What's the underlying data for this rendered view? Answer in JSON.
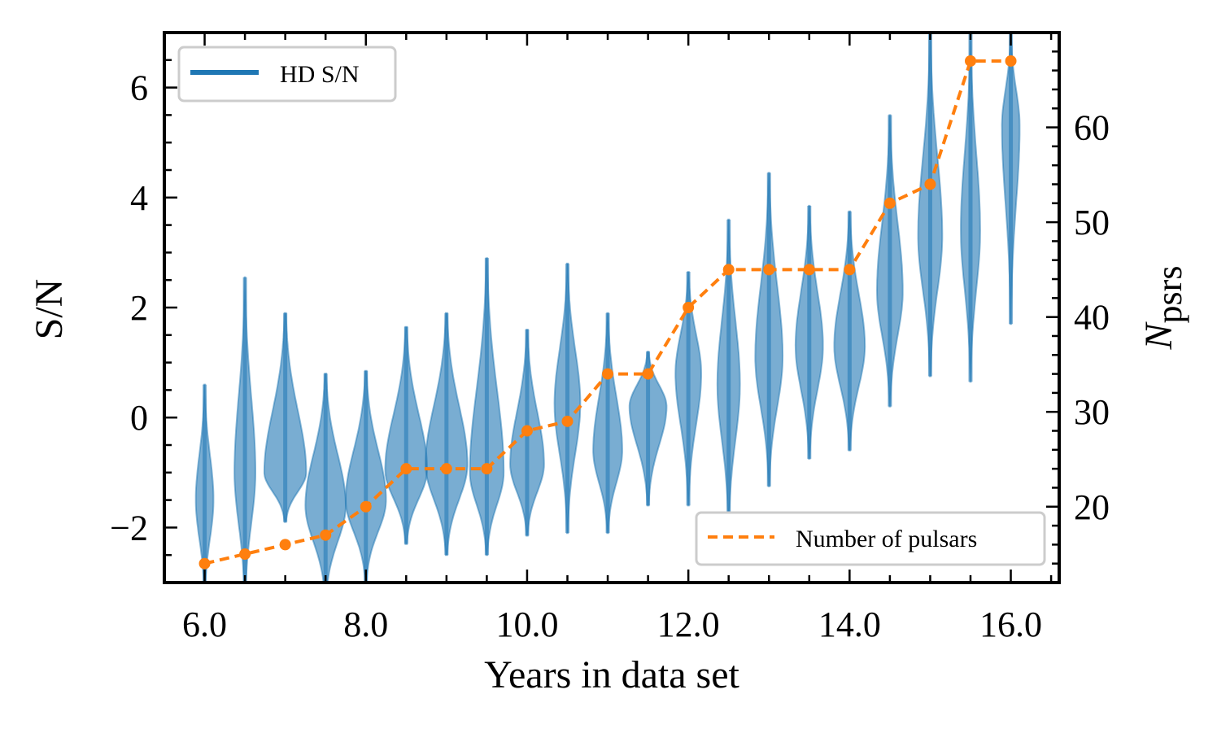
{
  "chart_data": {
    "type": "violin",
    "xlabel": "Years in data set",
    "ylabel_left": "S/N",
    "ylabel_right_main": "N",
    "ylabel_right_sub": "psrs",
    "xlim": [
      5.5,
      16.6
    ],
    "ylim_left": [
      -3.0,
      7.0
    ],
    "ylim_right": [
      12.0,
      70.0
    ],
    "x_ticks": [
      "6.0",
      "8.0",
      "10.0",
      "12.0",
      "14.0",
      "16.0"
    ],
    "y_left_ticks": [
      "−2",
      "0",
      "2",
      "4",
      "6"
    ],
    "y_right_ticks": [
      "20",
      "30",
      "40",
      "50",
      "60"
    ],
    "grid": false,
    "colors": {
      "violin": "#1f77b4",
      "pulsars": "#ff7f0e"
    },
    "legend_sn": {
      "label": "HD S/N",
      "position": "upper-left"
    },
    "legend_pulsars": {
      "label": "Number of pulsars",
      "position": "lower-right"
    },
    "violins": [
      {
        "x": 6.0,
        "min": -3.3,
        "max": 0.6,
        "median": -2.2,
        "peak": -1.5,
        "width": 0.22
      },
      {
        "x": 6.5,
        "min": -3.4,
        "max": 2.55,
        "median": -1.0,
        "peak": -1.0,
        "width": 0.26
      },
      {
        "x": 7.0,
        "min": -1.9,
        "max": 1.9,
        "median": -1.0,
        "peak": -1.0,
        "width": 0.52
      },
      {
        "x": 7.5,
        "min": -3.3,
        "max": 0.8,
        "median": -1.6,
        "peak": -1.6,
        "width": 0.5
      },
      {
        "x": 8.0,
        "min": -3.0,
        "max": 0.85,
        "median": -1.5,
        "peak": -1.5,
        "width": 0.5
      },
      {
        "x": 8.5,
        "min": -2.3,
        "max": 1.65,
        "median": -0.95,
        "peak": -0.95,
        "width": 0.52
      },
      {
        "x": 9.0,
        "min": -2.5,
        "max": 1.9,
        "median": -0.85,
        "peak": -0.85,
        "width": 0.52
      },
      {
        "x": 9.5,
        "min": -2.5,
        "max": 2.9,
        "median": -1.0,
        "peak": -1.0,
        "width": 0.42
      },
      {
        "x": 10.0,
        "min": -2.15,
        "max": 1.6,
        "median": -0.85,
        "peak": -0.85,
        "width": 0.42
      },
      {
        "x": 10.5,
        "min": -2.1,
        "max": 2.8,
        "median": 0.2,
        "peak": 0.25,
        "width": 0.32
      },
      {
        "x": 11.0,
        "min": -2.1,
        "max": 1.9,
        "median": -0.6,
        "peak": -0.6,
        "width": 0.36
      },
      {
        "x": 11.5,
        "min": -1.6,
        "max": 1.2,
        "median": 0.1,
        "peak": 0.2,
        "width": 0.46
      },
      {
        "x": 12.0,
        "min": -1.6,
        "max": 2.65,
        "median": 0.6,
        "peak": 0.8,
        "width": 0.32
      },
      {
        "x": 12.5,
        "min": -2.0,
        "max": 3.6,
        "median": 0.5,
        "peak": 0.6,
        "width": 0.28
      },
      {
        "x": 13.0,
        "min": -1.25,
        "max": 4.45,
        "median": 1.05,
        "peak": 1.1,
        "width": 0.34
      },
      {
        "x": 13.5,
        "min": -0.75,
        "max": 3.85,
        "median": 1.2,
        "peak": 1.3,
        "width": 0.34
      },
      {
        "x": 14.0,
        "min": -0.6,
        "max": 3.75,
        "median": 1.35,
        "peak": 1.3,
        "width": 0.38
      },
      {
        "x": 14.5,
        "min": 0.2,
        "max": 5.5,
        "median": 2.3,
        "peak": 2.3,
        "width": 0.32
      },
      {
        "x": 15.0,
        "min": 0.75,
        "max": 7.0,
        "median": 3.25,
        "peak": 3.3,
        "width": 0.3
      },
      {
        "x": 15.5,
        "min": 0.65,
        "max": 7.0,
        "median": 3.35,
        "peak": 3.4,
        "width": 0.24
      },
      {
        "x": 16.0,
        "min": 1.7,
        "max": 7.0,
        "median": 5.2,
        "peak": 5.3,
        "width": 0.22
      }
    ],
    "pulsars": {
      "x": [
        6.0,
        6.5,
        7.0,
        7.5,
        8.0,
        8.5,
        9.0,
        9.5,
        10.0,
        10.5,
        11.0,
        11.5,
        12.0,
        12.5,
        13.0,
        13.5,
        14.0,
        14.5,
        15.0,
        15.5,
        16.0
      ],
      "y": [
        14,
        15,
        16,
        17,
        20,
        24,
        24,
        24,
        28,
        29,
        34,
        34,
        41,
        45,
        45,
        45,
        45,
        52,
        54,
        67,
        67
      ]
    }
  }
}
